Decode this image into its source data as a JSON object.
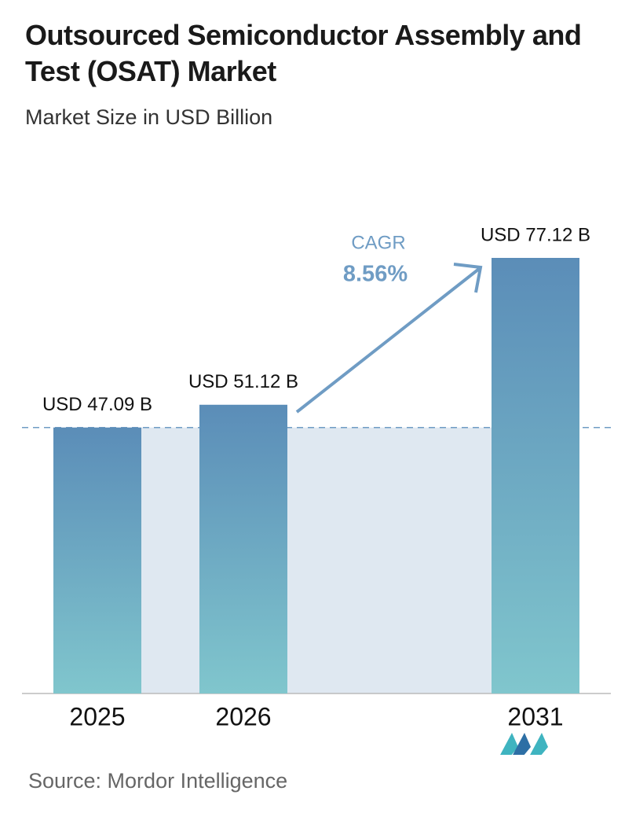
{
  "chart_data": {
    "type": "bar",
    "title": "Outsourced Semiconductor Assembly and Test (OSAT) Market",
    "subtitle": "Market Size in USD Billion",
    "categories": [
      "2025",
      "2026",
      "2031"
    ],
    "values": [
      47.09,
      51.12,
      77.12
    ],
    "value_labels": [
      "USD 47.09 B",
      "USD 51.12 B",
      "USD 77.12 B"
    ],
    "annotations": {
      "label": "CAGR",
      "value": "8.56%"
    },
    "source": "Source: Mordor Intelligence"
  }
}
